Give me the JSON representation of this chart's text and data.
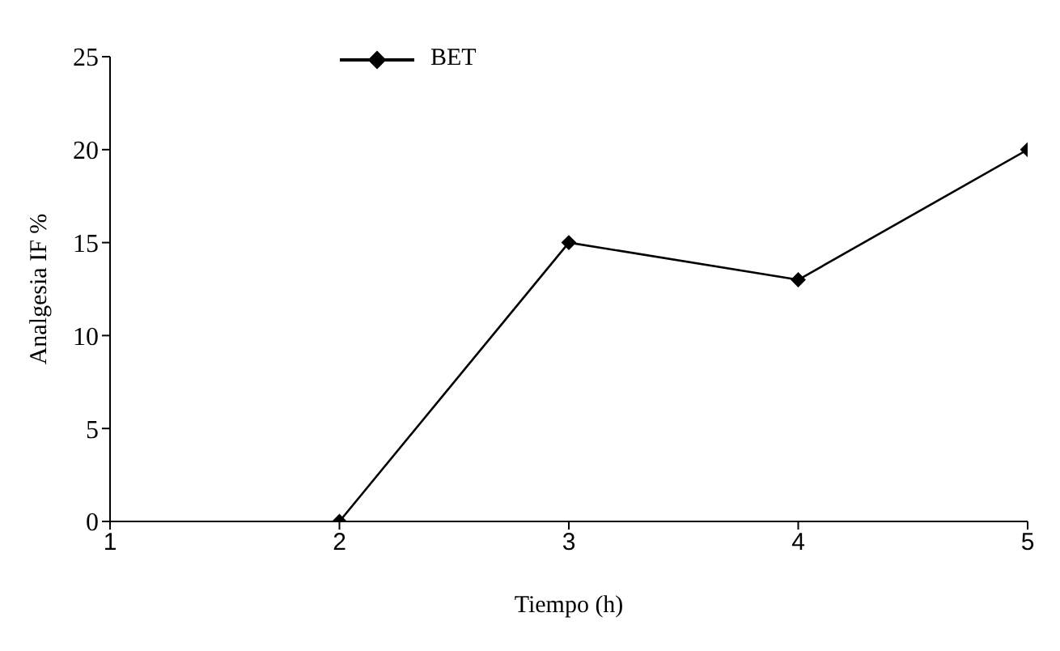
{
  "chart_data": {
    "type": "line",
    "xlabel": "Tiempo (h)",
    "ylabel": "Analgesia IF %",
    "x": [
      2,
      3,
      4,
      5
    ],
    "series": [
      {
        "name": "BET",
        "color": "#000000",
        "values": [
          0,
          15,
          13,
          20
        ]
      }
    ],
    "xlim": [
      1,
      5
    ],
    "xticks": [
      1,
      2,
      3,
      4,
      5
    ],
    "ylim": [
      0,
      25
    ],
    "yticks": [
      0,
      5,
      10,
      15,
      20,
      25
    ],
    "grid": false,
    "legend": "top left",
    "marker": "diamond",
    "line_style": "solid"
  }
}
